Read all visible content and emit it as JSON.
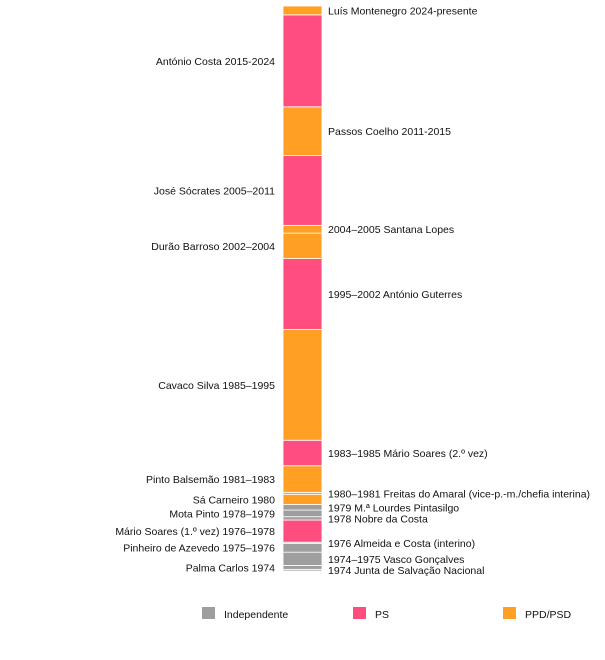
{
  "chart_data": {
    "type": "bar",
    "orientation": "vertical-stacked-timeline",
    "title": "",
    "xlabel": "",
    "ylabel": "",
    "ylim": [
      1974,
      2025
    ],
    "series": [
      {
        "name": "Independente",
        "color": "#9e9e9e"
      },
      {
        "name": "PS",
        "color": "#ff4d80"
      },
      {
        "name": "PPD/PSD",
        "color": "#ffa024"
      }
    ],
    "segments": [
      {
        "label": "1974 Junta de Salvação Nacional",
        "party": "Independente",
        "start": 1974.0,
        "end": 1974.15,
        "side": "right"
      },
      {
        "label": "Palma Carlos 1974",
        "party": "Independente",
        "start": 1974.15,
        "end": 1974.5,
        "side": "left"
      },
      {
        "label": "1974–1975 Vasco Gonçalves",
        "party": "Independente",
        "start": 1974.5,
        "end": 1975.7,
        "side": "right"
      },
      {
        "label": "Pinheiro de Azevedo 1975–1976",
        "party": "Independente",
        "start": 1975.7,
        "end": 1976.5,
        "side": "left"
      },
      {
        "label": "1976 Almeida e Costa (interino)",
        "party": "Independente",
        "start": 1976.5,
        "end": 1976.6,
        "side": "right"
      },
      {
        "label": "Mário Soares (1.º vez) 1976–1978",
        "party": "PS",
        "start": 1976.6,
        "end": 1978.6,
        "side": "left"
      },
      {
        "label": "1978 Nobre da Costa",
        "party": "Independente",
        "start": 1978.6,
        "end": 1978.9,
        "side": "right"
      },
      {
        "label": "Mota Pinto 1978–1979",
        "party": "Independente",
        "start": 1978.9,
        "end": 1979.5,
        "side": "left"
      },
      {
        "label": "1979 M.ª Lourdes Pintasilgo",
        "party": "Independente",
        "start": 1979.5,
        "end": 1980.0,
        "side": "right"
      },
      {
        "label": "Sá Carneiro 1980",
        "party": "PPD/PSD",
        "start": 1980.0,
        "end": 1980.9,
        "side": "left"
      },
      {
        "label": "1980–1981 Freitas do Amaral (vice-p.-m./chefia interina)",
        "party": "PPD/PSD",
        "start": 1980.9,
        "end": 1981.1,
        "side": "right"
      },
      {
        "label": "Pinto Balsemão 1981–1983",
        "party": "PPD/PSD",
        "start": 1981.1,
        "end": 1983.5,
        "side": "left"
      },
      {
        "label": "1983–1985 Mário Soares (2.º vez)",
        "party": "PS",
        "start": 1983.5,
        "end": 1985.8,
        "side": "right"
      },
      {
        "label": "Cavaco Silva 1985–1995",
        "party": "PPD/PSD",
        "start": 1985.8,
        "end": 1995.8,
        "side": "left"
      },
      {
        "label": "1995–2002 António Guterres",
        "party": "PS",
        "start": 1995.8,
        "end": 2002.2,
        "side": "right"
      },
      {
        "label": "Durão Barroso 2002–2004",
        "party": "PPD/PSD",
        "start": 2002.2,
        "end": 2004.5,
        "side": "left"
      },
      {
        "label": "2004–2005 Santana Lopes",
        "party": "PPD/PSD",
        "start": 2004.5,
        "end": 2005.2,
        "side": "right"
      },
      {
        "label": "José Sócrates 2005–2011",
        "party": "PS",
        "start": 2005.2,
        "end": 2011.5,
        "side": "left"
      },
      {
        "label": "Passos Coelho 2011-2015",
        "party": "PPD/PSD",
        "start": 2011.5,
        "end": 2015.9,
        "side": "right"
      },
      {
        "label": "António Costa 2015-2024",
        "party": "PS",
        "start": 2015.9,
        "end": 2024.2,
        "side": "left"
      },
      {
        "label": "Luís Montenegro 2024-presente",
        "party": "PPD/PSD",
        "start": 2024.2,
        "end": 2025.0,
        "side": "right"
      }
    ],
    "legend": {
      "placement": "bottom",
      "entries": [
        "Independente",
        "PS",
        "PPD/PSD"
      ]
    }
  }
}
